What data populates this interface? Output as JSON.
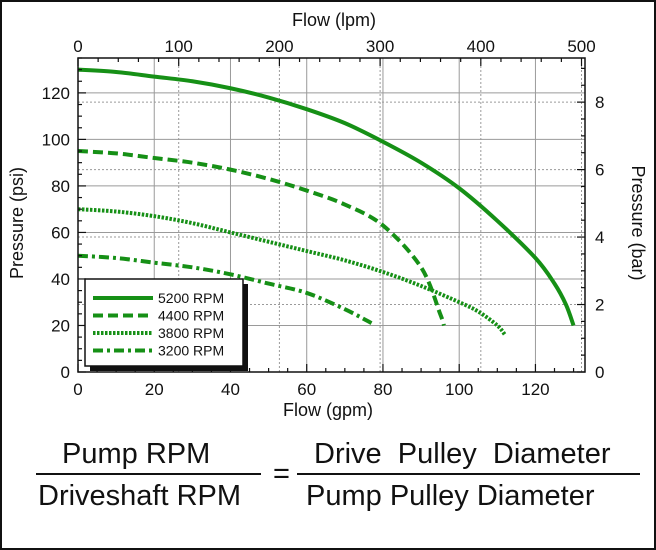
{
  "chart_data": {
    "type": "line",
    "xlabel": "Flow (gpm)",
    "ylabel": "Pressure (psi)",
    "x2label": "Flow (lpm)",
    "y2label": "Pressure (bar)",
    "xlim": [
      0,
      133
    ],
    "ylim": [
      0,
      135
    ],
    "x_ticks": [
      "0",
      "20",
      "40",
      "60",
      "80",
      "100",
      "120"
    ],
    "y_ticks": [
      "0",
      "20",
      "40",
      "60",
      "80",
      "100",
      "120"
    ],
    "x2_ticks": [
      "0",
      "100",
      "200",
      "300",
      "400",
      "500"
    ],
    "y2_ticks": [
      "0",
      "2",
      "4",
      "6",
      "8"
    ],
    "grid": true,
    "legend_placement": "bottom-left",
    "series": [
      {
        "name": "5200 RPM",
        "dash": "solid",
        "x": [
          0,
          10,
          20,
          30,
          40,
          50,
          60,
          70,
          80,
          90,
          100,
          110,
          120,
          125,
          128,
          130
        ],
        "y": [
          130,
          129,
          127,
          125,
          122,
          118,
          113,
          107,
          99,
          90,
          79,
          65,
          49,
          38,
          29,
          20
        ]
      },
      {
        "name": "4400 RPM",
        "dash": "dashed",
        "x": [
          0,
          10,
          20,
          30,
          40,
          50,
          60,
          70,
          80,
          90,
          95,
          96
        ],
        "y": [
          95,
          94,
          92,
          90,
          87,
          83,
          78,
          72,
          63,
          45,
          25,
          20
        ]
      },
      {
        "name": "3800 RPM",
        "dash": "dotted",
        "x": [
          0,
          10,
          20,
          30,
          40,
          50,
          60,
          70,
          80,
          90,
          100,
          105,
          110,
          112
        ],
        "y": [
          70,
          69,
          67,
          64,
          60,
          56,
          52,
          48,
          43,
          37,
          30,
          26,
          20,
          16
        ]
      },
      {
        "name": "3200 RPM",
        "dash": "dash-dot",
        "x": [
          0,
          10,
          20,
          30,
          40,
          50,
          60,
          70,
          77
        ],
        "y": [
          50,
          49,
          47,
          45,
          42,
          38,
          34,
          27,
          21
        ]
      }
    ],
    "colors": {
      "line": "#169016",
      "grid": "#9a9a9a",
      "axis": "#111111"
    }
  },
  "formula": {
    "left_numerator": "Pump RPM",
    "left_denominator": "Driveshaft RPM",
    "equals": "=",
    "right_numerator": "Drive  Pulley  Diameter",
    "right_denominator": "Pump Pulley Diameter"
  }
}
